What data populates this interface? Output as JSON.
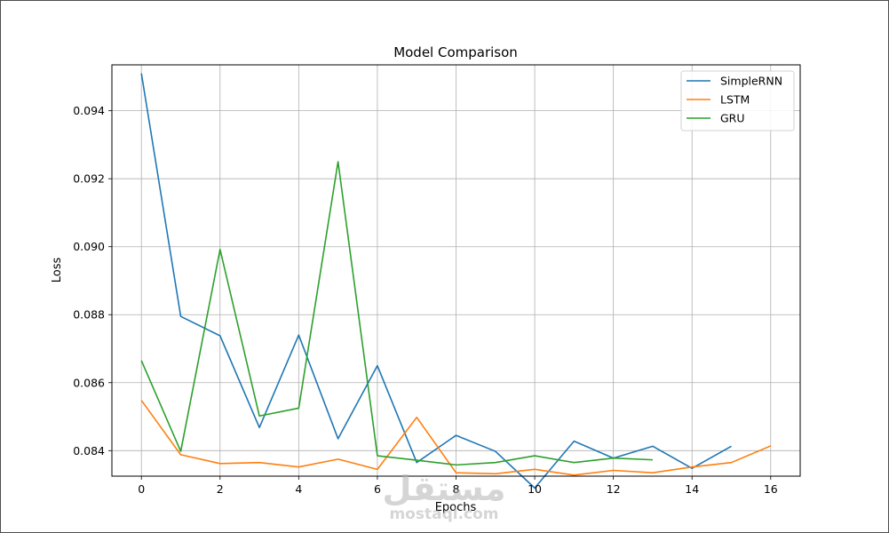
{
  "chart_data": {
    "type": "line",
    "title": "Model Comparison",
    "xlabel": "Epochs",
    "ylabel": "Loss",
    "xlim": [
      -0.75,
      16.75
    ],
    "ylim": [
      0.08325,
      0.09535
    ],
    "xticks": [
      0,
      2,
      4,
      6,
      8,
      10,
      12,
      14,
      16
    ],
    "yticks": [
      0.084,
      0.086,
      0.088,
      0.09,
      0.092,
      0.094
    ],
    "ytick_labels": [
      "0.084",
      "0.086",
      "0.088",
      "0.090",
      "0.092",
      "0.094"
    ],
    "grid": true,
    "legend_position": "top-right",
    "series": [
      {
        "name": "SimpleRNN",
        "color": "#1f77b4",
        "x": [
          0,
          1,
          2,
          3,
          4,
          5,
          6,
          7,
          8,
          9,
          10,
          11,
          12,
          13,
          14,
          15
        ],
        "values": [
          0.0951,
          0.08795,
          0.08738,
          0.08468,
          0.0874,
          0.08435,
          0.0865,
          0.08365,
          0.08445,
          0.08398,
          0.0829,
          0.08428,
          0.08378,
          0.08413,
          0.08348,
          0.08413
        ]
      },
      {
        "name": "LSTM",
        "color": "#ff7f0e",
        "x": [
          0,
          1,
          2,
          3,
          4,
          5,
          6,
          7,
          8,
          9,
          10,
          11,
          12,
          13,
          14,
          15,
          16
        ],
        "values": [
          0.08548,
          0.08388,
          0.08362,
          0.08365,
          0.08352,
          0.08375,
          0.08345,
          0.08498,
          0.08335,
          0.08332,
          0.08345,
          0.08328,
          0.08342,
          0.08335,
          0.08352,
          0.08365,
          0.08414
        ]
      },
      {
        "name": "GRU",
        "color": "#2ca02c",
        "x": [
          0,
          1,
          2,
          3,
          4,
          5,
          6,
          7,
          8,
          9,
          10,
          11,
          12,
          13
        ],
        "values": [
          0.08665,
          0.08398,
          0.08992,
          0.08502,
          0.08525,
          0.0925,
          0.08385,
          0.08372,
          0.08358,
          0.08365,
          0.08385,
          0.08365,
          0.08378,
          0.08373
        ]
      }
    ]
  },
  "watermark": {
    "arabic": "مستقل",
    "latin": "mostaql.com"
  }
}
